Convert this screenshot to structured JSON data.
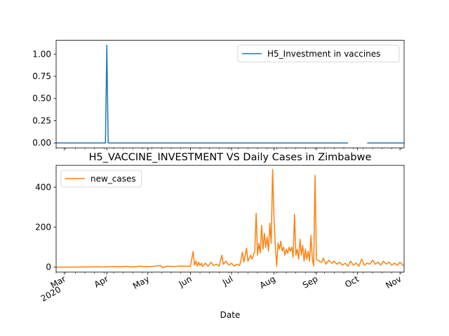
{
  "chart_data": [
    {
      "type": "line",
      "title": "",
      "xlabel": "",
      "ylabel": "",
      "ylim": [
        -0.055,
        1.155
      ],
      "yticks": [
        "0.00",
        "0.25",
        "0.50",
        "0.75",
        "1.00"
      ],
      "ytick_values": [
        0,
        0.25,
        0.5,
        0.75,
        1.0
      ],
      "xlim": [
        "2020-02-24",
        "2020-11-04"
      ],
      "legend_position": "upper-right",
      "grid": false,
      "series": [
        {
          "name": "H5_Investment in vaccines",
          "color": "#1f77b4",
          "segments": [
            [
              [
                "2020-02-24",
                0
              ],
              [
                "2020-03-31",
                0
              ],
              [
                "2020-04-01",
                1.1
              ],
              [
                "2020-04-02",
                0
              ],
              [
                "2020-09-24",
                0
              ]
            ],
            [
              [
                "2020-10-08",
                0
              ],
              [
                "2020-11-04",
                0
              ]
            ]
          ]
        }
      ]
    },
    {
      "type": "line",
      "title": "H5_VACCINE_INVESTMENT VS Daily Cases in Zimbabwe",
      "xlabel": "Date",
      "ylabel": "",
      "ylim": [
        -25,
        510
      ],
      "yticks": [
        "0",
        "200",
        "400"
      ],
      "ytick_values": [
        0,
        200,
        400
      ],
      "xlim": [
        "2020-02-24",
        "2020-11-04"
      ],
      "xticks": [
        {
          "date": "2020-03-01",
          "label": "Mar",
          "sublabel": "2020"
        },
        {
          "date": "2020-04-01",
          "label": "Apr",
          "sublabel": ""
        },
        {
          "date": "2020-05-01",
          "label": "May",
          "sublabel": ""
        },
        {
          "date": "2020-06-01",
          "label": "Jun",
          "sublabel": ""
        },
        {
          "date": "2020-07-01",
          "label": "Jul",
          "sublabel": ""
        },
        {
          "date": "2020-08-01",
          "label": "Aug",
          "sublabel": ""
        },
        {
          "date": "2020-09-01",
          "label": "Sep",
          "sublabel": ""
        },
        {
          "date": "2020-10-01",
          "label": "Oct",
          "sublabel": ""
        },
        {
          "date": "2020-11-01",
          "label": "Nov",
          "sublabel": ""
        }
      ],
      "legend_position": "upper-left",
      "grid": false,
      "series": [
        {
          "name": "new_cases",
          "color": "#ff7f0e",
          "points": [
            [
              "2020-02-24",
              0
            ],
            [
              "2020-03-20",
              1
            ],
            [
              "2020-03-25",
              2
            ],
            [
              "2020-03-30",
              1
            ],
            [
              "2020-04-05",
              3
            ],
            [
              "2020-04-10",
              2
            ],
            [
              "2020-04-15",
              4
            ],
            [
              "2020-04-20",
              1
            ],
            [
              "2020-04-25",
              5
            ],
            [
              "2020-04-30",
              2
            ],
            [
              "2020-05-05",
              4
            ],
            [
              "2020-05-10",
              8
            ],
            [
              "2020-05-12",
              -3
            ],
            [
              "2020-05-15",
              5
            ],
            [
              "2020-05-20",
              3
            ],
            [
              "2020-05-25",
              6
            ],
            [
              "2020-05-30",
              4
            ],
            [
              "2020-06-01",
              5
            ],
            [
              "2020-06-03",
              78
            ],
            [
              "2020-06-04",
              10
            ],
            [
              "2020-06-05",
              30
            ],
            [
              "2020-06-06",
              5
            ],
            [
              "2020-06-07",
              25
            ],
            [
              "2020-06-08",
              8
            ],
            [
              "2020-06-09",
              20
            ],
            [
              "2020-06-10",
              3
            ],
            [
              "2020-06-12",
              20
            ],
            [
              "2020-06-14",
              5
            ],
            [
              "2020-06-16",
              25
            ],
            [
              "2020-06-18",
              8
            ],
            [
              "2020-06-20",
              15
            ],
            [
              "2020-06-22",
              5
            ],
            [
              "2020-06-24",
              60
            ],
            [
              "2020-06-25",
              15
            ],
            [
              "2020-06-27",
              30
            ],
            [
              "2020-06-29",
              10
            ],
            [
              "2020-07-01",
              20
            ],
            [
              "2020-07-03",
              5
            ],
            [
              "2020-07-05",
              15
            ],
            [
              "2020-07-07",
              8
            ],
            [
              "2020-07-09",
              75
            ],
            [
              "2020-07-10",
              25
            ],
            [
              "2020-07-12",
              95
            ],
            [
              "2020-07-13",
              30
            ],
            [
              "2020-07-15",
              60
            ],
            [
              "2020-07-16",
              40
            ],
            [
              "2020-07-18",
              80
            ],
            [
              "2020-07-19",
              270
            ],
            [
              "2020-07-20",
              60
            ],
            [
              "2020-07-21",
              120
            ],
            [
              "2020-07-22",
              70
            ],
            [
              "2020-07-23",
              210
            ],
            [
              "2020-07-24",
              90
            ],
            [
              "2020-07-25",
              170
            ],
            [
              "2020-07-26",
              100
            ],
            [
              "2020-07-27",
              150
            ],
            [
              "2020-07-28",
              80
            ],
            [
              "2020-07-29",
              220
            ],
            [
              "2020-07-30",
              120
            ],
            [
              "2020-07-31",
              490
            ],
            [
              "2020-08-01",
              250
            ],
            [
              "2020-08-02",
              110
            ],
            [
              "2020-08-03",
              5
            ],
            [
              "2020-08-04",
              120
            ],
            [
              "2020-08-05",
              90
            ],
            [
              "2020-08-06",
              130
            ],
            [
              "2020-08-07",
              80
            ],
            [
              "2020-08-08",
              100
            ],
            [
              "2020-08-09",
              60
            ],
            [
              "2020-08-10",
              90
            ],
            [
              "2020-08-11",
              70
            ],
            [
              "2020-08-12",
              100
            ],
            [
              "2020-08-13",
              80
            ],
            [
              "2020-08-14",
              100
            ],
            [
              "2020-08-15",
              50
            ],
            [
              "2020-08-16",
              265
            ],
            [
              "2020-08-17",
              60
            ],
            [
              "2020-08-18",
              90
            ],
            [
              "2020-08-19",
              40
            ],
            [
              "2020-08-20",
              140
            ],
            [
              "2020-08-21",
              60
            ],
            [
              "2020-08-22",
              110
            ],
            [
              "2020-08-23",
              30
            ],
            [
              "2020-08-24",
              90
            ],
            [
              "2020-08-25",
              40
            ],
            [
              "2020-08-26",
              80
            ],
            [
              "2020-08-27",
              30
            ],
            [
              "2020-08-28",
              160
            ],
            [
              "2020-08-29",
              40
            ],
            [
              "2020-08-30",
              5
            ],
            [
              "2020-08-31",
              460
            ],
            [
              "2020-09-01",
              40
            ],
            [
              "2020-09-03",
              30
            ],
            [
              "2020-09-05",
              25
            ],
            [
              "2020-09-06",
              45
            ],
            [
              "2020-09-08",
              15
            ],
            [
              "2020-09-10",
              35
            ],
            [
              "2020-09-12",
              20
            ],
            [
              "2020-09-14",
              30
            ],
            [
              "2020-09-16",
              15
            ],
            [
              "2020-09-18",
              25
            ],
            [
              "2020-09-20",
              10
            ],
            [
              "2020-09-22",
              20
            ],
            [
              "2020-09-24",
              5
            ],
            [
              "2020-09-26",
              30
            ],
            [
              "2020-09-28",
              10
            ],
            [
              "2020-09-30",
              20
            ],
            [
              "2020-10-02",
              5
            ],
            [
              "2020-10-04",
              40
            ],
            [
              "2020-10-06",
              10
            ],
            [
              "2020-10-08",
              20
            ],
            [
              "2020-10-10",
              15
            ],
            [
              "2020-10-12",
              35
            ],
            [
              "2020-10-14",
              15
            ],
            [
              "2020-10-16",
              25
            ],
            [
              "2020-10-18",
              10
            ],
            [
              "2020-10-20",
              30
            ],
            [
              "2020-10-22",
              15
            ],
            [
              "2020-10-24",
              25
            ],
            [
              "2020-10-26",
              10
            ],
            [
              "2020-10-28",
              20
            ],
            [
              "2020-10-30",
              10
            ],
            [
              "2020-11-01",
              25
            ],
            [
              "2020-11-04",
              5
            ]
          ]
        }
      ]
    }
  ]
}
